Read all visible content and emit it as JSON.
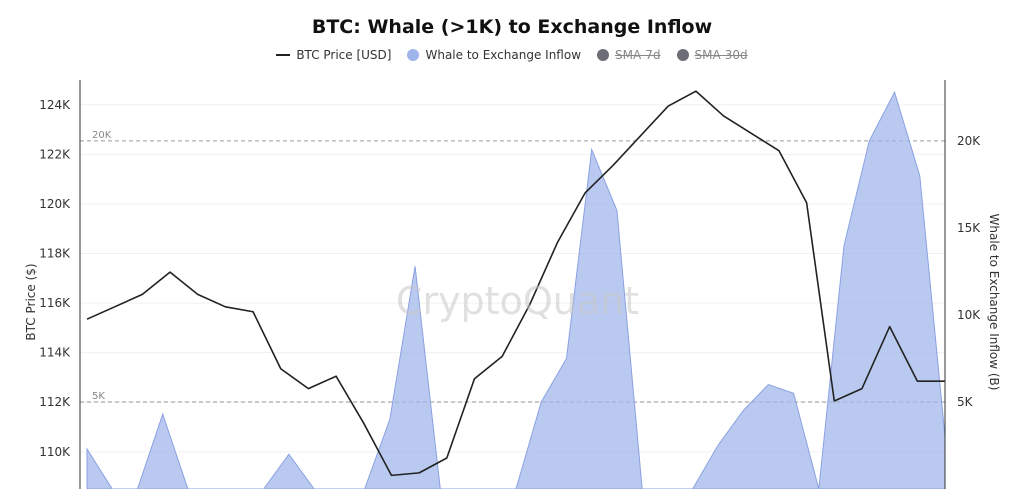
{
  "chart_data": {
    "type": "line",
    "title": "BTC: Whale (>1K) to Exchange Inflow",
    "watermark": "CryptoQuant",
    "legend": [
      {
        "name": "BTC Price [USD]",
        "marker": "line",
        "color": "#222222",
        "hidden": false
      },
      {
        "name": "Whale to Exchange Inflow",
        "marker": "dot",
        "color": "#9fb4ea",
        "hidden": false
      },
      {
        "name": "SMA-7d",
        "marker": "dot",
        "color": "#6d6d78",
        "hidden": true
      },
      {
        "name": "SMA-30d",
        "marker": "dot",
        "color": "#6d6d78",
        "hidden": true
      }
    ],
    "ylabel_left": "BTC Price ($)",
    "ylabel_right": "Whale to Exchange Inflow (B)",
    "yticks_left": [
      "110K",
      "112K",
      "114K",
      "116K",
      "118K",
      "120K",
      "122K",
      "124K"
    ],
    "yticks_right": [
      "5K",
      "10K",
      "15K",
      "20K"
    ],
    "ylim_left": [
      108500,
      125000
    ],
    "ylim_right": [
      0,
      23500
    ],
    "reference_lines": [
      {
        "label": "20K",
        "value": 20000
      },
      {
        "label": "5K",
        "value": 5000
      }
    ],
    "grid": true,
    "series": [
      {
        "name": "BTC Price [USD]",
        "axis": "left",
        "color": "#222222",
        "values": [
          115350,
          115850,
          116350,
          117250,
          116350,
          115850,
          115650,
          113350,
          112550,
          113050,
          111150,
          109050,
          109150,
          109750,
          112950,
          113850,
          115950,
          118450,
          120450,
          121550,
          122750,
          123950,
          124550,
          123550,
          122850,
          122150,
          120050,
          112050,
          112550,
          115050,
          112850,
          112850
        ]
      },
      {
        "name": "Whale to Exchange Inflow",
        "axis": "right",
        "color": "#9fb4ea",
        "values": [
          2300,
          0,
          0,
          4300,
          0,
          0,
          0,
          0,
          2000,
          0,
          0,
          0,
          4000,
          12800,
          0,
          0,
          0,
          0,
          5000,
          7500,
          19500,
          16000,
          0,
          0,
          0,
          2500,
          4500,
          6000,
          5500,
          0,
          14000,
          20000,
          22800,
          18000,
          3000
        ]
      }
    ]
  }
}
